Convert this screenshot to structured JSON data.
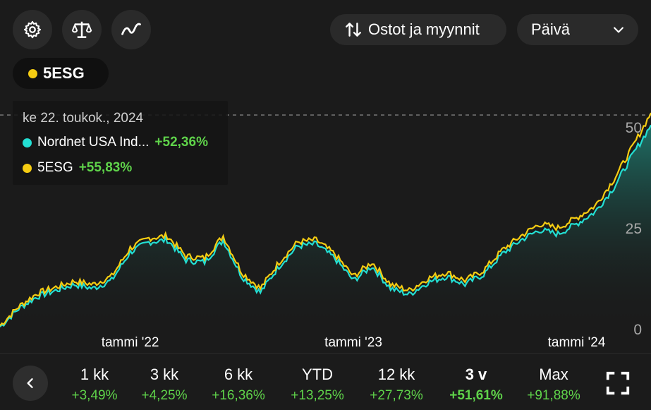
{
  "toolbar": {
    "icons": [
      "gear-icon",
      "scale-icon",
      "line-icon"
    ],
    "trades_label": "Ostot ja myynnit",
    "interval_value": "Päivä"
  },
  "chip": {
    "label": "5ESG",
    "color": "#f5cc12"
  },
  "tooltip": {
    "date": "ke 22. toukok., 2024",
    "rows": [
      {
        "name": "Nordnet USA Ind...",
        "value": "+52,36%",
        "color": "#23dfd3"
      },
      {
        "name": "5ESG",
        "value": "+55,83%",
        "color": "#f5cc12"
      }
    ]
  },
  "periods": [
    {
      "label": "1 kk",
      "change": "+3,49%"
    },
    {
      "label": "3 kk",
      "change": "+4,25%"
    },
    {
      "label": "6 kk",
      "change": "+16,36%"
    },
    {
      "label": "YTD",
      "change": "+13,25%"
    },
    {
      "label": "12 kk",
      "change": "+27,73%"
    },
    {
      "label": "3 v",
      "change": "+51,61%",
      "active": true
    },
    {
      "label": "Max",
      "change": "+91,88%"
    }
  ],
  "chart_data": {
    "type": "line",
    "x_ticks": [
      "tammi '22",
      "tammi '23",
      "tammi '24"
    ],
    "y_ticks": [
      "0",
      "25",
      "50"
    ],
    "ylim": [
      0,
      57
    ],
    "colors": {
      "fund": "#23dfd3",
      "index": "#f5cc12"
    },
    "x": [
      "2021-06",
      "2021-07",
      "2021-08",
      "2021-09",
      "2021-10",
      "2021-11",
      "2021-12",
      "2022-01",
      "2022-02",
      "2022-03",
      "2022-04",
      "2022-05",
      "2022-06",
      "2022-07",
      "2022-08",
      "2022-09",
      "2022-10",
      "2022-11",
      "2022-12",
      "2023-01",
      "2023-02",
      "2023-03",
      "2023-04",
      "2023-05",
      "2023-06",
      "2023-07",
      "2023-08",
      "2023-09",
      "2023-10",
      "2023-11",
      "2023-12",
      "2024-01",
      "2024-02",
      "2024-03",
      "2024-04",
      "2024-05"
    ],
    "series": [
      {
        "name": "Nordnet USA Ind...",
        "values": [
          0.5,
          5.0,
          8.0,
          9.5,
          11.0,
          10.0,
          12.0,
          19.0,
          21.5,
          22.0,
          17.0,
          16.5,
          22.0,
          13.0,
          9.0,
          15.5,
          20.5,
          21.0,
          17.5,
          12.0,
          15.5,
          10.0,
          8.5,
          11.5,
          13.0,
          11.0,
          13.5,
          18.5,
          22.0,
          24.5,
          23.5,
          26.0,
          29.0,
          35.0,
          43.0,
          50.5
        ]
      },
      {
        "name": "5ESG",
        "values": [
          0.8,
          5.5,
          8.8,
          10.3,
          11.8,
          11.0,
          13.0,
          20.0,
          22.5,
          23.0,
          18.0,
          17.5,
          23.0,
          14.0,
          10.0,
          16.5,
          21.5,
          22.0,
          18.5,
          13.0,
          16.5,
          11.0,
          9.5,
          12.5,
          14.0,
          12.0,
          14.5,
          19.5,
          23.0,
          26.0,
          25.0,
          27.5,
          30.5,
          37.0,
          45.0,
          53.5
        ]
      }
    ]
  }
}
